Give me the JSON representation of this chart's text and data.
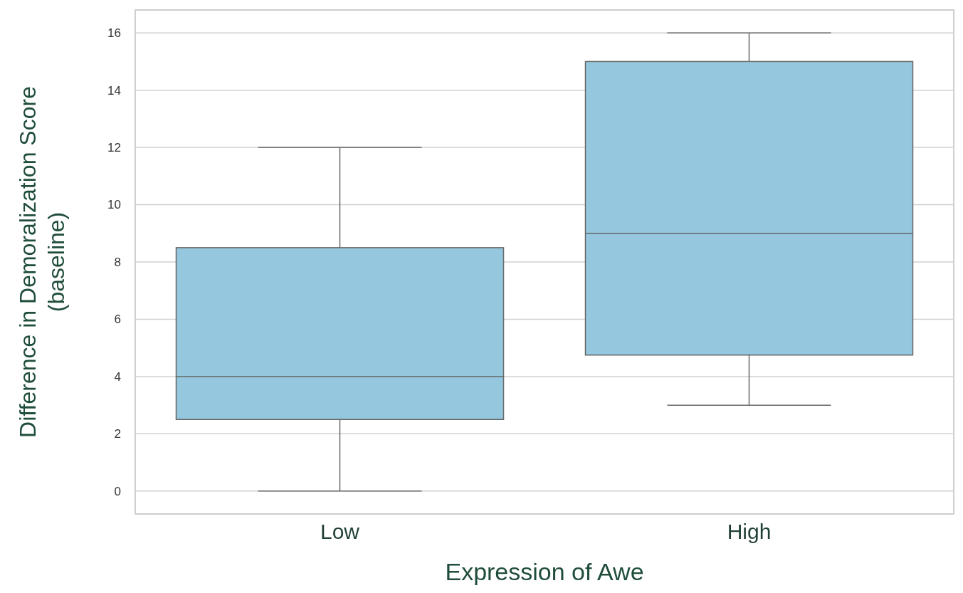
{
  "chart_data": {
    "type": "box",
    "xlabel": "Expression of Awe",
    "ylabel": "Difference in Demoralization Score (baseline)",
    "categories": [
      "Low",
      "High"
    ],
    "color": "#95c8de",
    "boxes": [
      {
        "low": 0,
        "q1": 2.5,
        "median": 4,
        "q3": 8.5,
        "high": 12
      },
      {
        "low": 3,
        "q1": 4.75,
        "median": 9,
        "q3": 15,
        "high": 16
      }
    ],
    "ylim": [
      -0.8,
      16.8
    ],
    "yticks": [
      0,
      2,
      4,
      6,
      8,
      10,
      12,
      14,
      16
    ],
    "grid": "y"
  }
}
